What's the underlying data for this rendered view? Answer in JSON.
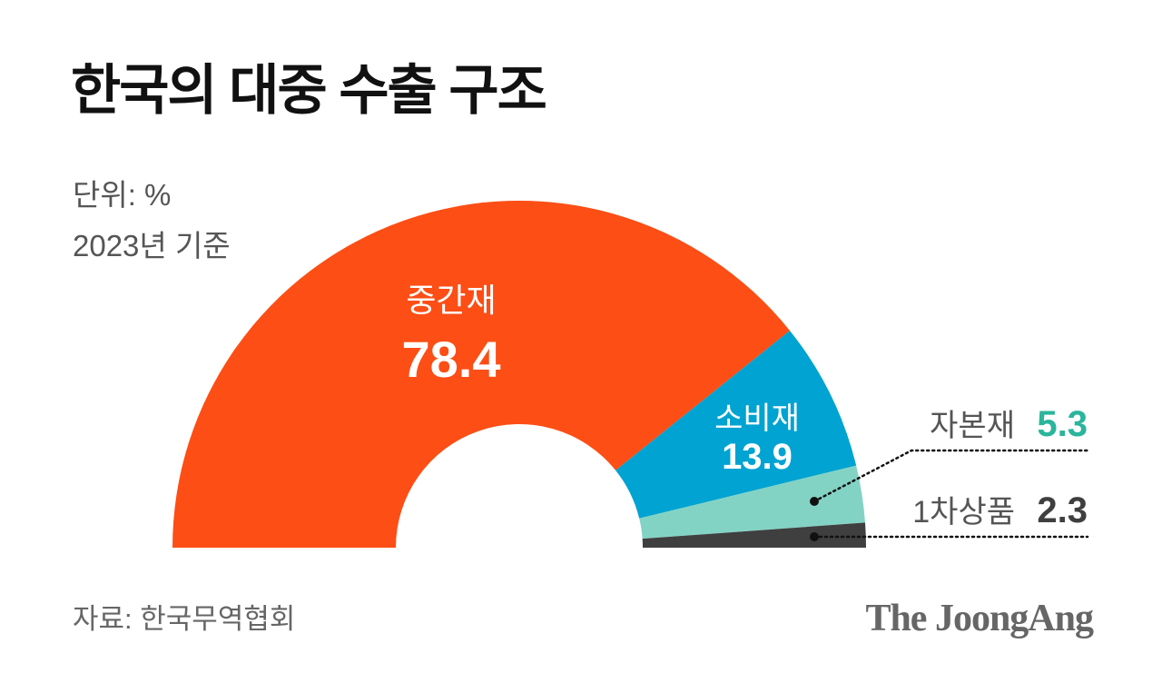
{
  "header": {
    "title": "한국의 대중 수출 구조",
    "unit": "단위: %",
    "basis": "2023년 기준"
  },
  "segments": [
    {
      "name": "중간재",
      "value": "78.4",
      "color": "#FC4E15"
    },
    {
      "name": "소비재",
      "value": "13.9",
      "color": "#00A3D1"
    },
    {
      "name": "자본재",
      "value": "5.3",
      "color": "#83D3C5",
      "value_color": "#2AB59C"
    },
    {
      "name": "1차상품",
      "value": "2.3",
      "color": "#3F3F3F",
      "value_color": "#3F3F3F"
    }
  ],
  "footer": {
    "source": "자료: 한국무역협회",
    "brand": "The JoongAng"
  },
  "chart_data": {
    "type": "pie",
    "subtype": "half-donut",
    "title": "한국의 대중 수출 구조",
    "subtitle": "단위: % / 2023년 기준",
    "categories": [
      "중간재",
      "소비재",
      "자본재",
      "1차상품"
    ],
    "values": [
      78.4,
      13.9,
      5.3,
      2.3
    ],
    "colors": [
      "#FC4E15",
      "#00A3D1",
      "#83D3C5",
      "#3F3F3F"
    ],
    "unit": "%",
    "source": "자료: 한국무역협회",
    "legend": "inline labels; 자본재 and 1차상품 labeled outside with dotted leader lines"
  }
}
